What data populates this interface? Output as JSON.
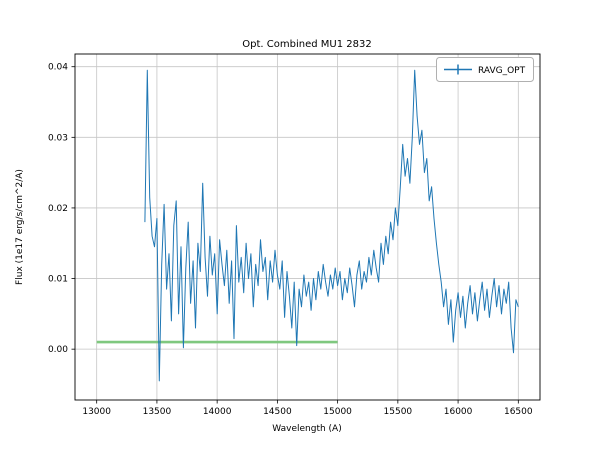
{
  "figure": {
    "background": "#ffffff"
  },
  "chart_data": {
    "type": "line",
    "title": "Opt. Combined MU1 2832",
    "xlabel": "Wavelength (A)",
    "ylabel": "Flux (1e17 erg/s/cm^2/A)",
    "xlim": [
      12820,
      16680
    ],
    "ylim": [
      -0.0072,
      0.0418
    ],
    "xticks": [
      13000,
      13500,
      14000,
      14500,
      15000,
      15500,
      16000,
      16500
    ],
    "xticklabels": [
      "13000",
      "13500",
      "14000",
      "14500",
      "15000",
      "15500",
      "16000",
      "16500"
    ],
    "yticks": [
      0.0,
      0.01,
      0.02,
      0.03,
      0.04
    ],
    "yticklabels": [
      "0.00",
      "0.01",
      "0.02",
      "0.03",
      "0.04"
    ],
    "grid": true,
    "grid_color": "#c6c6c6",
    "spine_color": "#000000",
    "legend": {
      "position": "upper right",
      "entries": [
        {
          "label": "RAVG_OPT",
          "color": "#1f77b4",
          "marker": "errorbar-plus"
        }
      ]
    },
    "series": [
      {
        "name": "baseline",
        "color": "#7fc87f",
        "width": 2.6,
        "x": [
          13000,
          15000
        ],
        "y": [
          0.001,
          0.001
        ]
      },
      {
        "name": "RAVG_OPT",
        "color": "#1f77b4",
        "width": 1,
        "x": [
          13400,
          13420,
          13440,
          13460,
          13480,
          13500,
          13520,
          13540,
          13560,
          13580,
          13600,
          13620,
          13640,
          13660,
          13680,
          13700,
          13720,
          13740,
          13760,
          13780,
          13800,
          13820,
          13840,
          13860,
          13880,
          13900,
          13920,
          13940,
          13960,
          13980,
          14000,
          14020,
          14040,
          14060,
          14080,
          14100,
          14120,
          14140,
          14160,
          14180,
          14200,
          14220,
          14240,
          14260,
          14280,
          14300,
          14320,
          14340,
          14360,
          14380,
          14400,
          14420,
          14440,
          14460,
          14480,
          14500,
          14520,
          14540,
          14560,
          14580,
          14600,
          14620,
          14640,
          14660,
          14680,
          14700,
          14720,
          14740,
          14760,
          14780,
          14800,
          14820,
          14840,
          14860,
          14880,
          14900,
          14920,
          14940,
          14960,
          14980,
          15000,
          15020,
          15040,
          15060,
          15080,
          15100,
          15120,
          15140,
          15160,
          15180,
          15200,
          15220,
          15240,
          15260,
          15280,
          15300,
          15320,
          15340,
          15360,
          15380,
          15400,
          15420,
          15440,
          15460,
          15480,
          15500,
          15520,
          15540,
          15560,
          15580,
          15600,
          15620,
          15640,
          15660,
          15680,
          15700,
          15720,
          15740,
          15760,
          15780,
          15800,
          15820,
          15840,
          15860,
          15880,
          15900,
          15920,
          15940,
          15960,
          15980,
          16000,
          16020,
          16040,
          16060,
          16080,
          16100,
          16120,
          16140,
          16160,
          16180,
          16200,
          16220,
          16240,
          16260,
          16280,
          16300,
          16320,
          16340,
          16360,
          16380,
          16400,
          16420,
          16440,
          16460,
          16480,
          16500
        ],
        "y": [
          0.018,
          0.0395,
          0.0215,
          0.016,
          0.0145,
          0.0185,
          -0.0045,
          0.012,
          0.0205,
          0.0085,
          0.0135,
          0.004,
          0.0175,
          0.021,
          0.005,
          0.0145,
          0.0002,
          0.0115,
          0.018,
          0.0065,
          0.0125,
          0.003,
          0.015,
          0.011,
          0.0235,
          0.013,
          0.0075,
          0.016,
          0.0105,
          0.0135,
          0.005,
          0.0155,
          0.012,
          0.009,
          0.014,
          0.0065,
          0.0125,
          0.0015,
          0.0175,
          0.0095,
          0.013,
          0.008,
          0.015,
          0.01,
          0.0135,
          0.006,
          0.012,
          0.009,
          0.0155,
          0.011,
          0.013,
          0.007,
          0.0125,
          0.0095,
          0.014,
          0.0105,
          0.0085,
          0.0125,
          0.0045,
          0.011,
          0.0075,
          0.003,
          0.0095,
          0.0005,
          0.0085,
          0.006,
          0.0105,
          0.0075,
          0.0095,
          0.0055,
          0.01,
          0.007,
          0.011,
          0.0085,
          0.012,
          0.0095,
          0.0075,
          0.0105,
          0.0085,
          0.0115,
          0.009,
          0.011,
          0.007,
          0.01,
          0.008,
          0.0115,
          0.009,
          0.006,
          0.0105,
          0.0125,
          0.0085,
          0.011,
          0.0095,
          0.013,
          0.0105,
          0.014,
          0.0115,
          0.0095,
          0.015,
          0.012,
          0.016,
          0.0135,
          0.018,
          0.0155,
          0.02,
          0.0175,
          0.023,
          0.029,
          0.0245,
          0.027,
          0.0235,
          0.03,
          0.0395,
          0.033,
          0.029,
          0.031,
          0.025,
          0.027,
          0.021,
          0.023,
          0.0185,
          0.015,
          0.012,
          0.0095,
          0.006,
          0.0085,
          0.0035,
          0.007,
          0.001,
          0.0055,
          0.008,
          0.0045,
          0.0075,
          0.003,
          0.0065,
          0.009,
          0.005,
          0.008,
          0.004,
          0.007,
          0.0095,
          0.0055,
          0.0085,
          0.0045,
          0.0075,
          0.01,
          0.006,
          0.009,
          0.005,
          0.0085,
          0.0065,
          0.0095,
          0.003,
          -0.0005,
          0.007,
          0.006
        ]
      }
    ]
  }
}
